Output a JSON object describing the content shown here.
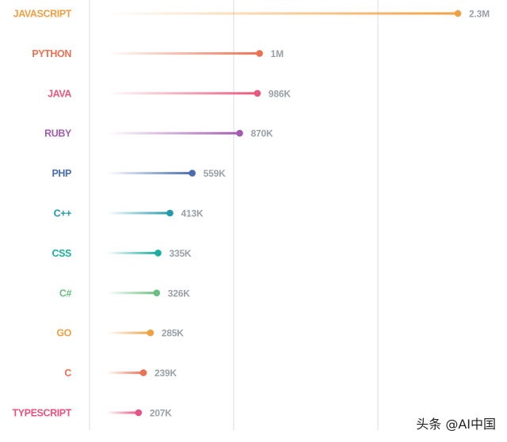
{
  "chart_data": {
    "type": "lollipop",
    "title": "",
    "xlabel": "",
    "ylabel": "",
    "xlim": [
      0,
      2300000
    ],
    "grid": true,
    "categories": [
      "JAVASCRIPT",
      "PYTHON",
      "JAVA",
      "RUBY",
      "PHP",
      "C++",
      "CSS",
      "C#",
      "GO",
      "C",
      "TYPESCRIPT"
    ],
    "values": [
      2300000,
      1000000,
      986000,
      870000,
      559000,
      413000,
      335000,
      326000,
      285000,
      239000,
      207000
    ],
    "value_labels": [
      "2.3M",
      "1M",
      "986K",
      "870K",
      "559K",
      "413K",
      "335K",
      "326K",
      "285K",
      "239K",
      "207K"
    ],
    "colors": [
      "#f0a044",
      "#ee7052",
      "#e8587c",
      "#a45cb0",
      "#4a6db0",
      "#2399ad",
      "#1aae9e",
      "#6cbd80",
      "#f0a044",
      "#ee7052",
      "#e8527e"
    ]
  },
  "watermark": "头条 @AI中国"
}
